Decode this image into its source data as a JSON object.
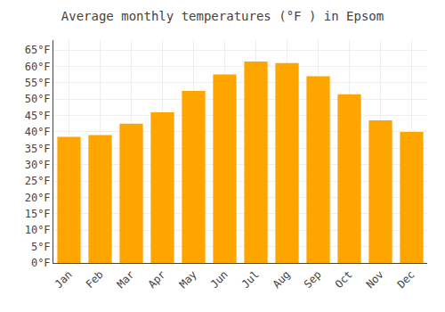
{
  "chart_data": {
    "type": "bar",
    "title": "Average monthly temperatures (°F ) in Epsom",
    "categories": [
      "Jan",
      "Feb",
      "Mar",
      "Apr",
      "May",
      "Jun",
      "Jul",
      "Aug",
      "Sep",
      "Oct",
      "Nov",
      "Dec"
    ],
    "values": [
      38.5,
      39.0,
      42.5,
      46.0,
      52.5,
      57.5,
      61.5,
      61.0,
      57.0,
      51.5,
      43.5,
      40.0
    ],
    "color": "#FFA500",
    "ylim": [
      0,
      68
    ],
    "yticks": [
      {
        "value": 0,
        "label": "0°F"
      },
      {
        "value": 5,
        "label": "5°F"
      },
      {
        "value": 10,
        "label": "10°F"
      },
      {
        "value": 15,
        "label": "15°F"
      },
      {
        "value": 20,
        "label": "20°F"
      },
      {
        "value": 25,
        "label": "25°F"
      },
      {
        "value": 30,
        "label": "30°F"
      },
      {
        "value": 35,
        "label": "35°F"
      },
      {
        "value": 40,
        "label": "40°F"
      },
      {
        "value": 45,
        "label": "45°F"
      },
      {
        "value": 50,
        "label": "50°F"
      },
      {
        "value": 55,
        "label": "55°F"
      },
      {
        "value": 60,
        "label": "60°F"
      },
      {
        "value": 65,
        "label": "65°F"
      }
    ],
    "grid": true
  }
}
